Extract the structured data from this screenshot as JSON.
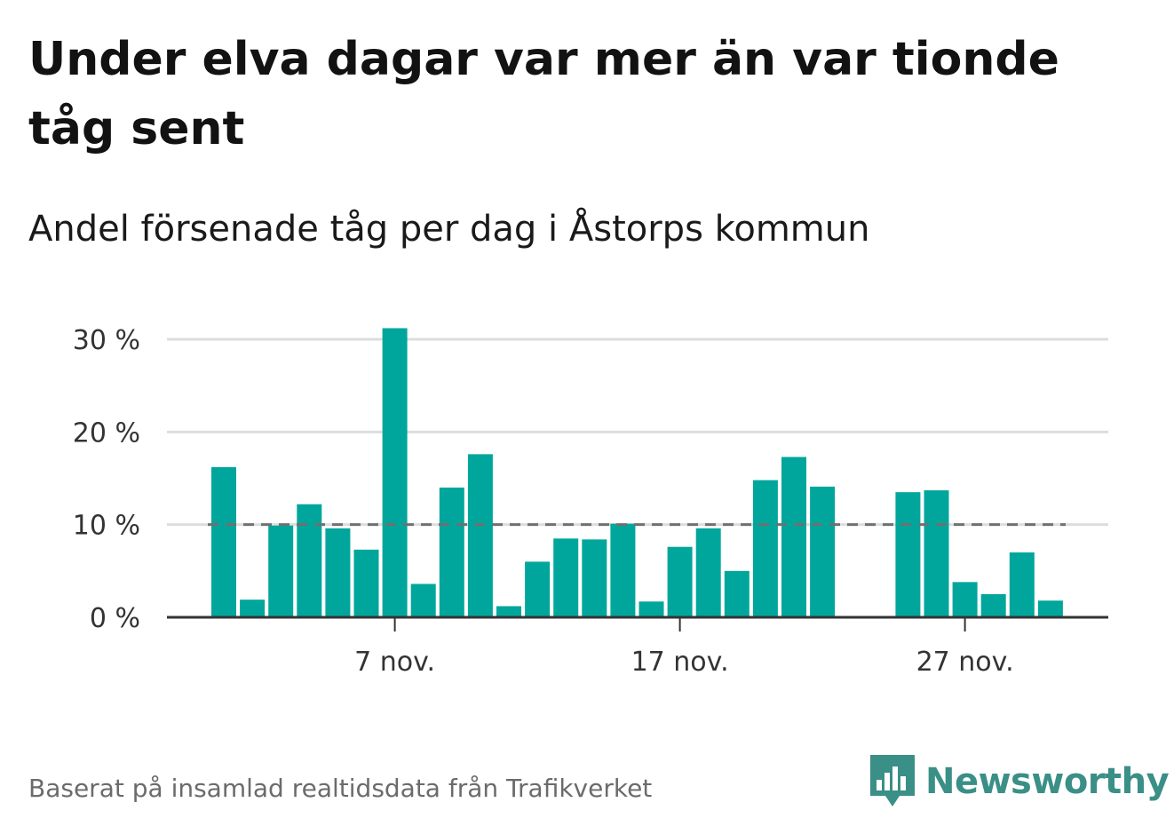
{
  "title": "Under elva dagar var mer än var tionde tåg sent",
  "subtitle": "Andel försenade tåg per dag i Åstorps kommun",
  "footer": "Baserat på insamlad realtidsdata från Trafikverket",
  "logo": {
    "text": "Newsworthy",
    "icon": "newsworthy-logo-icon"
  },
  "colors": {
    "bar": "#00a69c",
    "reference_line": "#707070",
    "grid": "#dddddd",
    "axis": "#333333",
    "logo": "#3a8f87"
  },
  "chart_data": {
    "type": "bar",
    "x_start_day": 1,
    "x_label_month": "nov.",
    "y_tick_suffix": " %",
    "x": [
      1,
      2,
      3,
      4,
      5,
      6,
      7,
      8,
      9,
      10,
      11,
      12,
      13,
      14,
      15,
      16,
      17,
      18,
      19,
      20,
      21,
      22,
      23,
      24,
      25,
      26,
      27,
      28,
      29,
      30
    ],
    "values": [
      16.2,
      1.9,
      9.9,
      12.2,
      9.6,
      7.3,
      31.2,
      3.6,
      14.0,
      17.6,
      1.2,
      6.0,
      8.5,
      8.4,
      10.1,
      1.7,
      7.6,
      9.6,
      5.0,
      14.8,
      17.3,
      14.1,
      null,
      null,
      13.5,
      13.7,
      3.8,
      2.5,
      7.0,
      1.8
    ],
    "reference_line": 10,
    "x_ticks": [
      {
        "day": 7,
        "label": "7 nov."
      },
      {
        "day": 17,
        "label": "17 nov."
      },
      {
        "day": 27,
        "label": "27 nov."
      }
    ],
    "y_ticks": [
      {
        "value": 0,
        "label": "0 %"
      },
      {
        "value": 10,
        "label": "10 %"
      },
      {
        "value": 20,
        "label": "20 %"
      },
      {
        "value": 30,
        "label": "30 %"
      }
    ],
    "ylim": [
      0,
      30
    ],
    "xlabel": "",
    "ylabel": "",
    "grid": true
  }
}
